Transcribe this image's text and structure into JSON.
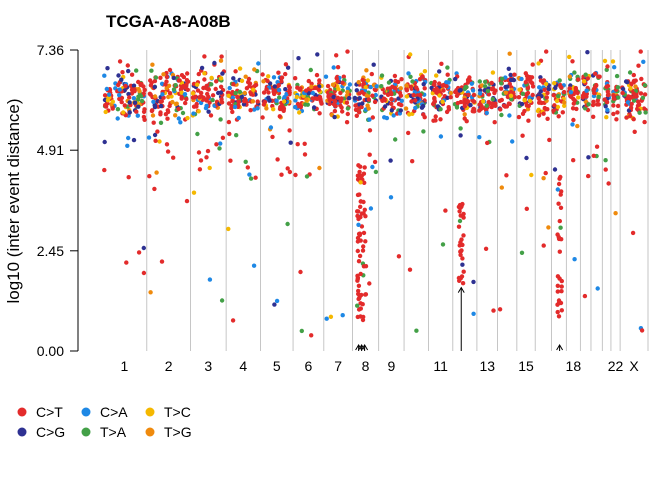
{
  "chart_data": {
    "type": "scatter",
    "title": "TCGA-A8-A08B",
    "xlabel": "",
    "ylabel": "log10 (inter event distance)",
    "ylim": [
      0,
      7.36
    ],
    "yticks": [
      "0.00",
      "2.45",
      "4.91",
      "7.36"
    ],
    "grid": "vertical chromosome separators",
    "x_categories": [
      "1",
      "2",
      "3",
      "4",
      "5",
      "6",
      "7",
      "8",
      "9",
      "11",
      "13",
      "15",
      "18",
      "22",
      "X"
    ],
    "legend_position": "bottom-left",
    "legend": [
      {
        "label": "C>T",
        "color": "#E32B2B"
      },
      {
        "label": "C>G",
        "color": "#2E3192"
      },
      {
        "label": "C>A",
        "color": "#1E88E5"
      },
      {
        "label": "T>A",
        "color": "#43A047"
      },
      {
        "label": "T>C",
        "color": "#F5B800"
      },
      {
        "label": "T>G",
        "color": "#EF8A0C"
      }
    ],
    "kataegis_foci": [
      {
        "chromosome": "8",
        "y_low": 0.7,
        "y_high": 4.6,
        "arrow_count": 3
      },
      {
        "chromosome": "12",
        "y_low": 1.5,
        "y_high": 3.6,
        "arrow_count": 1
      },
      {
        "chromosome": "17",
        "y_low": 0.8,
        "y_high": 4.3,
        "arrow_count": 1
      }
    ]
  }
}
